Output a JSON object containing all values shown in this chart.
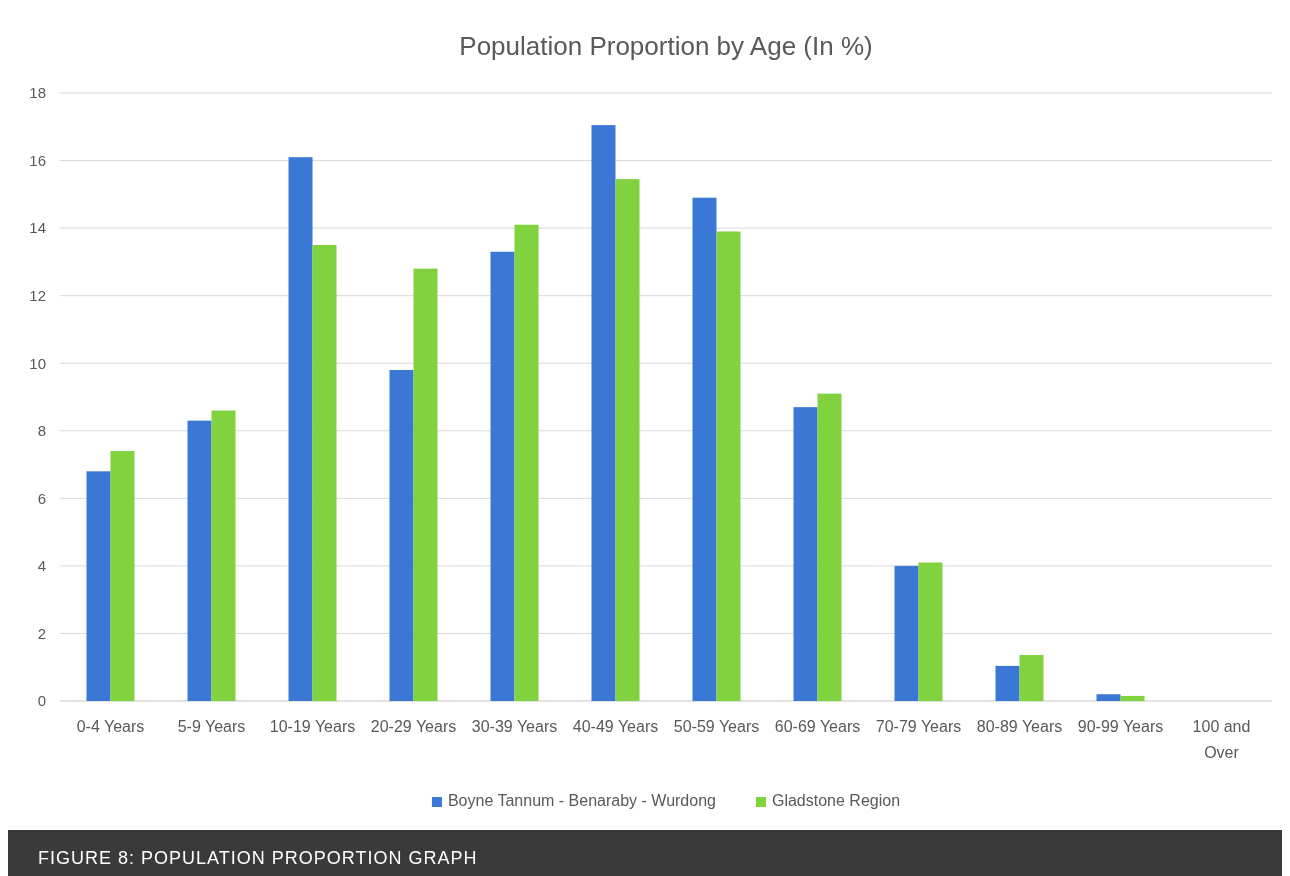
{
  "chart_data": {
    "type": "bar",
    "title": "Population Proportion by Age (In %)",
    "categories": [
      "0-4 Years",
      "5-9 Years",
      "10-19 Years",
      "20-29 Years",
      "30-39 Years",
      "40-49 Years",
      "50-59 Years",
      "60-69 Years",
      "70-79 Years",
      "80-89 Years",
      "90-99 Years",
      "100 and Over"
    ],
    "series": [
      {
        "name": "Boyne Tannum - Benaraby - Wurdong",
        "color": "#3b78d6",
        "values": [
          6.8,
          8.3,
          16.1,
          9.8,
          13.3,
          17.05,
          14.9,
          8.7,
          4.0,
          1.04,
          0.2,
          0
        ]
      },
      {
        "name": "Gladstone Region",
        "color": "#80d23e",
        "values": [
          7.4,
          8.6,
          13.5,
          12.8,
          14.1,
          15.45,
          13.9,
          9.1,
          4.1,
          1.36,
          0.15,
          0
        ]
      }
    ],
    "ylim": [
      0,
      18
    ],
    "yticks": [
      0,
      2,
      4,
      6,
      8,
      10,
      12,
      14,
      16,
      18
    ],
    "grid": "y",
    "legend": "bottom",
    "annotations": [
      "FIGURE 8: POPULATION PROPORTION GRAPH"
    ]
  }
}
